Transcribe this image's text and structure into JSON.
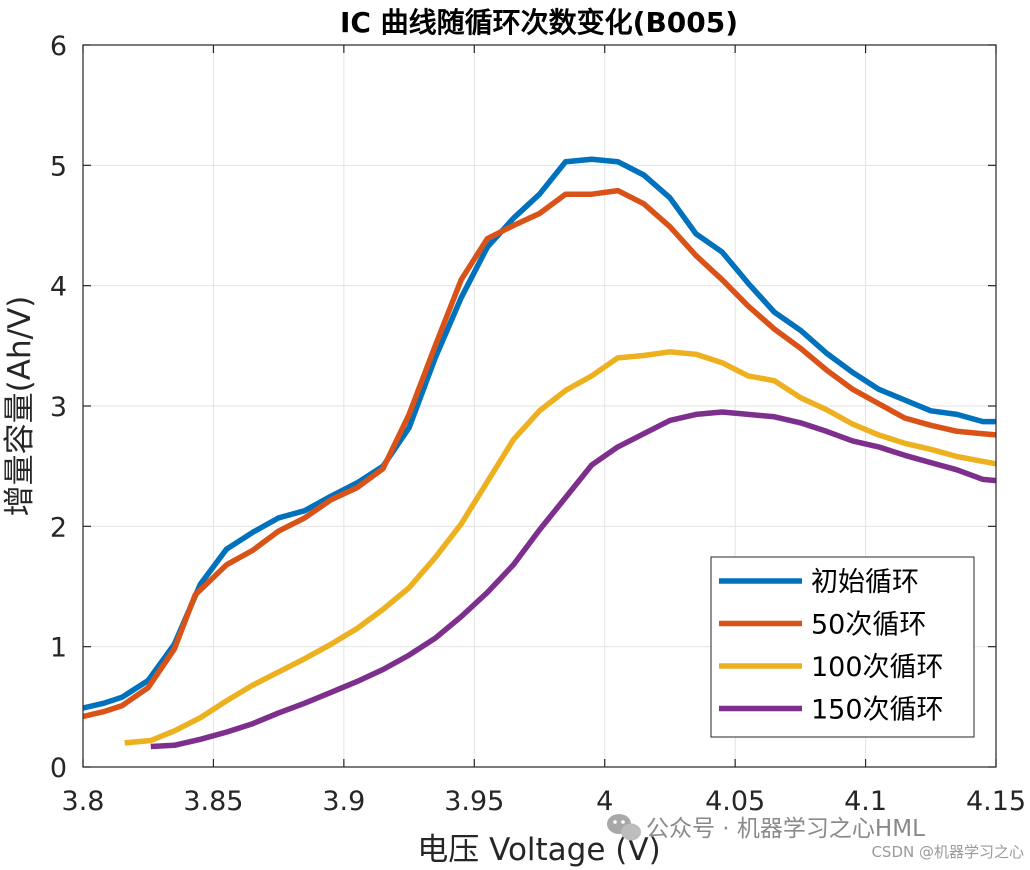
{
  "chart_data": {
    "type": "line",
    "title": "IC 曲线随循环次数变化(B005)",
    "xlabel": "电压 Voltage (V)",
    "ylabel": "增量容量(Ah/V)",
    "xlim": [
      3.8,
      4.15
    ],
    "ylim": [
      0,
      6
    ],
    "x_ticks": [
      "3.8",
      "3.85",
      "3.9",
      "3.95",
      "4",
      "4.05",
      "4.1",
      "4.15"
    ],
    "y_ticks": [
      "0",
      "1",
      "2",
      "3",
      "4",
      "5",
      "6"
    ],
    "grid": true,
    "legend_position": "bottom-right",
    "series": [
      {
        "name": "初始循环",
        "color": "#0072BD",
        "points": [
          [
            3.8,
            0.49
          ],
          [
            3.808,
            0.53
          ],
          [
            3.815,
            0.58
          ],
          [
            3.825,
            0.72
          ],
          [
            3.835,
            1.02
          ],
          [
            3.845,
            1.52
          ],
          [
            3.855,
            1.81
          ],
          [
            3.865,
            1.95
          ],
          [
            3.875,
            2.07
          ],
          [
            3.885,
            2.13
          ],
          [
            3.895,
            2.25
          ],
          [
            3.905,
            2.36
          ],
          [
            3.915,
            2.5
          ],
          [
            3.925,
            2.82
          ],
          [
            3.935,
            3.4
          ],
          [
            3.945,
            3.9
          ],
          [
            3.955,
            4.32
          ],
          [
            3.965,
            4.56
          ],
          [
            3.975,
            4.76
          ],
          [
            3.985,
            5.03
          ],
          [
            3.995,
            5.05
          ],
          [
            4.005,
            5.03
          ],
          [
            4.015,
            4.92
          ],
          [
            4.025,
            4.73
          ],
          [
            4.035,
            4.43
          ],
          [
            4.045,
            4.28
          ],
          [
            4.055,
            4.02
          ],
          [
            4.065,
            3.78
          ],
          [
            4.075,
            3.63
          ],
          [
            4.085,
            3.44
          ],
          [
            4.095,
            3.28
          ],
          [
            4.105,
            3.14
          ],
          [
            4.115,
            3.05
          ],
          [
            4.125,
            2.96
          ],
          [
            4.135,
            2.93
          ],
          [
            4.145,
            2.87
          ],
          [
            4.15,
            2.87
          ]
        ]
      },
      {
        "name": "50次循环",
        "color": "#D95319",
        "points": [
          [
            3.8,
            0.42
          ],
          [
            3.808,
            0.46
          ],
          [
            3.815,
            0.51
          ],
          [
            3.825,
            0.66
          ],
          [
            3.835,
            0.98
          ],
          [
            3.843,
            1.43
          ],
          [
            3.855,
            1.68
          ],
          [
            3.865,
            1.8
          ],
          [
            3.875,
            1.96
          ],
          [
            3.885,
            2.07
          ],
          [
            3.895,
            2.22
          ],
          [
            3.905,
            2.32
          ],
          [
            3.915,
            2.48
          ],
          [
            3.925,
            2.93
          ],
          [
            3.935,
            3.5
          ],
          [
            3.945,
            4.05
          ],
          [
            3.955,
            4.39
          ],
          [
            3.965,
            4.5
          ],
          [
            3.975,
            4.6
          ],
          [
            3.985,
            4.76
          ],
          [
            3.995,
            4.76
          ],
          [
            4.005,
            4.79
          ],
          [
            4.015,
            4.68
          ],
          [
            4.025,
            4.49
          ],
          [
            4.035,
            4.25
          ],
          [
            4.045,
            4.05
          ],
          [
            4.055,
            3.83
          ],
          [
            4.065,
            3.64
          ],
          [
            4.075,
            3.48
          ],
          [
            4.085,
            3.3
          ],
          [
            4.095,
            3.14
          ],
          [
            4.105,
            3.02
          ],
          [
            4.115,
            2.9
          ],
          [
            4.125,
            2.84
          ],
          [
            4.135,
            2.79
          ],
          [
            4.145,
            2.77
          ],
          [
            4.15,
            2.76
          ]
        ]
      },
      {
        "name": "100次循环",
        "color": "#EDB120",
        "points": [
          [
            3.816,
            0.2
          ],
          [
            3.826,
            0.22
          ],
          [
            3.835,
            0.3
          ],
          [
            3.845,
            0.41
          ],
          [
            3.855,
            0.55
          ],
          [
            3.865,
            0.68
          ],
          [
            3.875,
            0.79
          ],
          [
            3.885,
            0.9
          ],
          [
            3.895,
            1.02
          ],
          [
            3.905,
            1.15
          ],
          [
            3.915,
            1.31
          ],
          [
            3.925,
            1.49
          ],
          [
            3.935,
            1.74
          ],
          [
            3.945,
            2.02
          ],
          [
            3.955,
            2.37
          ],
          [
            3.965,
            2.72
          ],
          [
            3.975,
            2.96
          ],
          [
            3.985,
            3.13
          ],
          [
            3.995,
            3.25
          ],
          [
            4.005,
            3.4
          ],
          [
            4.015,
            3.42
          ],
          [
            4.025,
            3.45
          ],
          [
            4.035,
            3.43
          ],
          [
            4.045,
            3.36
          ],
          [
            4.055,
            3.25
          ],
          [
            4.065,
            3.21
          ],
          [
            4.075,
            3.07
          ],
          [
            4.085,
            2.97
          ],
          [
            4.095,
            2.85
          ],
          [
            4.105,
            2.76
          ],
          [
            4.115,
            2.69
          ],
          [
            4.125,
            2.64
          ],
          [
            4.135,
            2.58
          ],
          [
            4.145,
            2.54
          ],
          [
            4.15,
            2.52
          ]
        ]
      },
      {
        "name": "150次循环",
        "color": "#7E2F8E",
        "points": [
          [
            3.826,
            0.17
          ],
          [
            3.835,
            0.18
          ],
          [
            3.845,
            0.23
          ],
          [
            3.855,
            0.29
          ],
          [
            3.865,
            0.36
          ],
          [
            3.875,
            0.45
          ],
          [
            3.885,
            0.53
          ],
          [
            3.895,
            0.62
          ],
          [
            3.905,
            0.71
          ],
          [
            3.915,
            0.81
          ],
          [
            3.925,
            0.93
          ],
          [
            3.935,
            1.07
          ],
          [
            3.945,
            1.25
          ],
          [
            3.955,
            1.45
          ],
          [
            3.965,
            1.68
          ],
          [
            3.975,
            1.97
          ],
          [
            3.985,
            2.24
          ],
          [
            3.995,
            2.51
          ],
          [
            4.005,
            2.66
          ],
          [
            4.015,
            2.77
          ],
          [
            4.025,
            2.88
          ],
          [
            4.035,
            2.93
          ],
          [
            4.045,
            2.95
          ],
          [
            4.055,
            2.93
          ],
          [
            4.065,
            2.91
          ],
          [
            4.075,
            2.86
          ],
          [
            4.085,
            2.79
          ],
          [
            4.095,
            2.71
          ],
          [
            4.105,
            2.66
          ],
          [
            4.115,
            2.59
          ],
          [
            4.125,
            2.53
          ],
          [
            4.135,
            2.47
          ],
          [
            4.145,
            2.39
          ],
          [
            4.15,
            2.38
          ]
        ]
      }
    ]
  },
  "watermark": {
    "main": "公众号 · 机器学习之心HML",
    "sub": "CSDN @机器学习之心",
    "icon": "wechat-icon"
  }
}
